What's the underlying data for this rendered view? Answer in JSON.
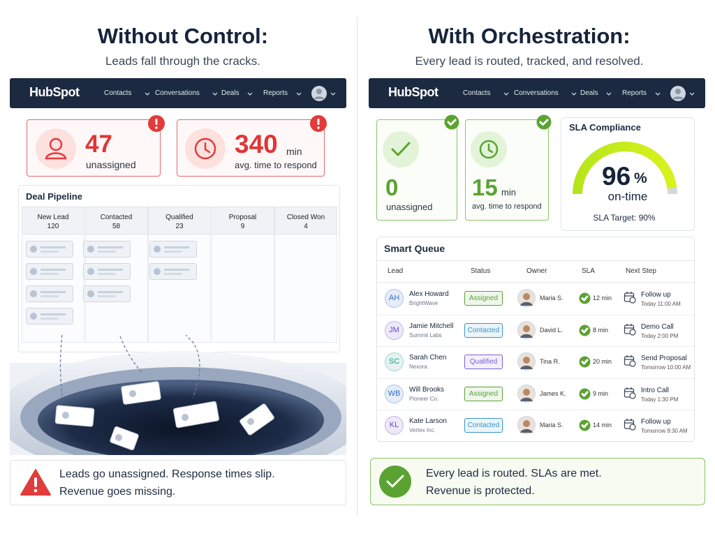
{
  "left": {
    "title": "Without Control:",
    "subtitle": "Leads fall through the cracks.",
    "nav": {
      "logo": "HubSpot",
      "items": [
        "Contacts",
        "Conversations",
        "Deals",
        "Reports"
      ]
    },
    "kpis": [
      {
        "value": 47,
        "label": "unassigned"
      },
      {
        "value": 340,
        "unit": "min",
        "label": "avg. time to respond"
      }
    ],
    "pipeline": {
      "title": "Deal Pipeline",
      "stages": [
        {
          "name": "New Lead",
          "count": 120
        },
        {
          "name": "Contacted",
          "count": 58
        },
        {
          "name": "Qualified",
          "count": 23
        },
        {
          "name": "Proposal",
          "count": 9
        },
        {
          "name": "Closed Won",
          "count": 4
        }
      ]
    },
    "footer": [
      "Leads go unassigned. Response times slip.",
      "Revenue goes missing."
    ]
  },
  "right": {
    "title": "With Orchestration:",
    "subtitle": "Every lead is routed, tracked, and resolved.",
    "nav": {
      "logo": "HubSpot",
      "items": [
        "Contacts",
        "Conversations",
        "Deals",
        "Reports"
      ]
    },
    "kpis": [
      {
        "value": 0,
        "label": "unassigned"
      },
      {
        "value": 15,
        "unit": "min",
        "label": "avg. time to respond"
      }
    ],
    "sla": {
      "title": "SLA Compliance",
      "value": 96,
      "unit": "%",
      "label": "on-time",
      "target": "SLA Target: 90%"
    },
    "queue": {
      "title": "Smart Queue",
      "columns": [
        "Lead",
        "Status",
        "Owner",
        "SLA",
        "Next Step"
      ],
      "rows": [
        {
          "initials": "AH",
          "avatar_color": "#2f6fc6",
          "name": "Alex Howard",
          "company": "BrightWave",
          "status": "Assigned",
          "status_color": "#5aa332",
          "owner": "Maria S.",
          "sla": "12 min",
          "next": "Follow up",
          "when": "Today 11:00 AM"
        },
        {
          "initials": "JM",
          "avatar_color": "#6a4bc4",
          "name": "Jamie Mitchell",
          "company": "Summit Labs",
          "status": "Contacted",
          "status_color": "#3a93c8",
          "owner": "David L.",
          "sla": "8 min",
          "next": "Demo Call",
          "when": "Today 2:00 PM"
        },
        {
          "initials": "SC",
          "avatar_color": "#1f9a8a",
          "name": "Sarah Chen",
          "company": "Nexora",
          "status": "Qualified",
          "status_color": "#7a62d0",
          "owner": "Tina R.",
          "sla": "20 min",
          "next": "Send Proposal",
          "when": "Tomorrow 10:00 AM"
        },
        {
          "initials": "WB",
          "avatar_color": "#2f6fc6",
          "name": "Will Brooks",
          "company": "Pioneer Co.",
          "status": "Assigned",
          "status_color": "#5aa332",
          "owner": "James K.",
          "sla": "9 min",
          "next": "Intro Call",
          "when": "Today 1:30 PM"
        },
        {
          "initials": "KL",
          "avatar_color": "#6a4bc4",
          "name": "Kate Larson",
          "company": "Vertex Inc.",
          "status": "Contacted",
          "status_color": "#3a93c8",
          "owner": "Maria S.",
          "sla": "14 min",
          "next": "Follow up",
          "when": "Tomorrow 9:30 AM"
        }
      ]
    },
    "footer": [
      "Every lead is routed. SLAs are met.",
      "Revenue is protected."
    ]
  }
}
